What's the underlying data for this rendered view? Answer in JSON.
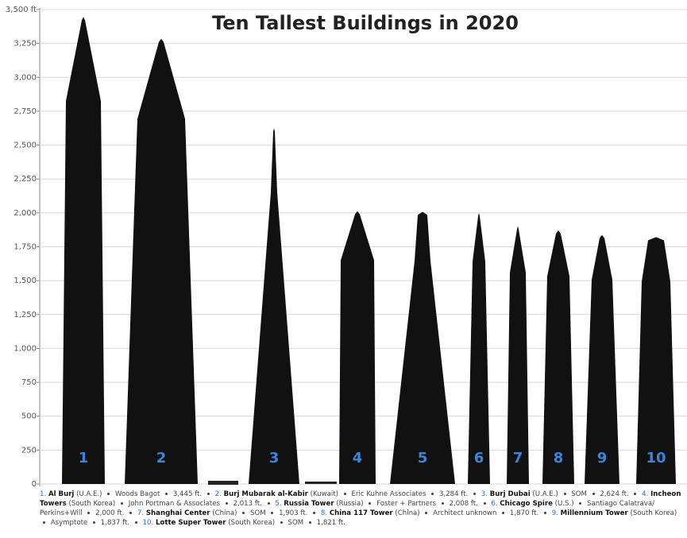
{
  "chart_data": {
    "type": "bar",
    "title": "Ten Tallest Buildings in 2020",
    "categories": [
      "1",
      "2",
      "3",
      "4",
      "5",
      "6",
      "7",
      "8",
      "9",
      "10"
    ],
    "caption_numbers": [
      "1.",
      "2.",
      "3.",
      "4.",
      "5.",
      "6.",
      "7.",
      "8.",
      "9.",
      "10."
    ],
    "names": [
      "Al Burj",
      "Burj Mubarak al-Kabir",
      "Burj Dubai",
      "Incheon Towers",
      "Russia Tower",
      "Chicago Spire",
      "Shanghai Center",
      "China 117 Tower",
      "Millennium Tower",
      "Lotte Super Tower"
    ],
    "countries": [
      "(U.A.E.)",
      "(Kuwait)",
      "(U.A.E.)",
      "(South Korea)",
      "(Russia)",
      "(U.S.)",
      "(China)",
      "(China)",
      "(South Korea)",
      "(South Korea)"
    ],
    "architects": [
      "Woods Bagot",
      "Eric Kuhne Associates",
      "SOM",
      "John Portman & Associates",
      "Foster + Partners",
      "Santiago Calatrava/ Perkins+Will",
      "SOM",
      "Architect unknown",
      "Asymptote",
      "SOM"
    ],
    "values": [
      3445,
      3284,
      2624,
      2013,
      2008,
      2000,
      1903,
      1870,
      1837,
      1821
    ],
    "value_labels": [
      "3,445 ft.",
      "3,284 ft.",
      "2,624 ft.",
      "2,013 ft.",
      "2,008 ft.",
      "2,000 ft.",
      "1,903 ft.",
      "1,870 ft.",
      "1,837 ft.",
      "1,821 ft."
    ],
    "color": "#111111",
    "ylim": [
      0,
      3500
    ],
    "yticks": [
      0,
      250,
      500,
      750,
      {
        "value": 1000,
        "label": "1,000"
      },
      {
        "value": 1250,
        "label": "1,250"
      },
      {
        "value": 1500,
        "label": "1,500"
      },
      {
        "value": 1750,
        "label": "1,750"
      },
      {
        "value": 2000,
        "label": "2,000"
      },
      {
        "value": 2250,
        "label": "2,250"
      },
      {
        "value": 2500,
        "label": "2,500"
      },
      {
        "value": 2750,
        "label": "2,750"
      },
      {
        "value": 3000,
        "label": "3,000"
      },
      {
        "value": 3250,
        "label": "3,250"
      },
      {
        "value": 3500,
        "label": "3,500 ft"
      }
    ],
    "grid": true
  }
}
